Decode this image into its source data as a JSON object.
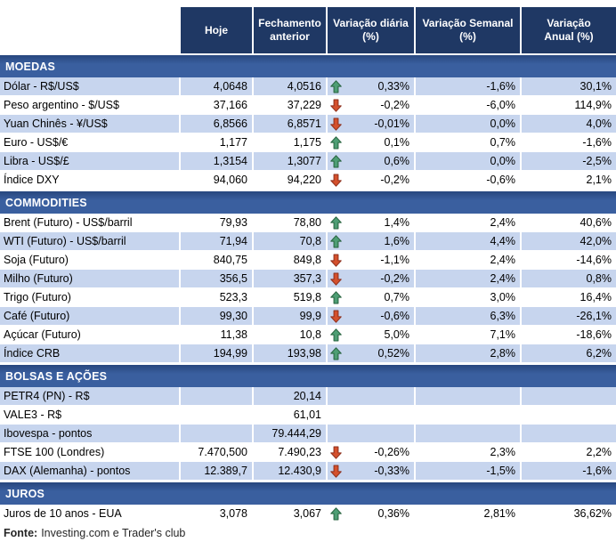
{
  "header": {
    "columns": [
      "Hoje",
      "Fechamento\nanterior",
      "Variação diária\n(%)",
      "Variação Semanal\n(%)",
      "Variação\nAnual (%)"
    ]
  },
  "colors": {
    "header_bg": "#1f3864",
    "section_bg": "#3a5f9f",
    "row_alt_bg": "#c7d5ee",
    "row_bg": "#ffffff",
    "up_fill": "#4e9e74",
    "up_border": "#27633f",
    "down_fill": "#d4502c",
    "down_border": "#8e2f1c"
  },
  "sections": [
    {
      "title": "MOEDAS",
      "rows": [
        {
          "label": "Dólar - R$/US$",
          "hoje": "4,0648",
          "fech": "4,0516",
          "arrow": "up",
          "dia": "0,33%",
          "sem": "-1,6%",
          "anu": "30,1%",
          "alt": true
        },
        {
          "label": "Peso argentino - $/US$",
          "hoje": "37,166",
          "fech": "37,229",
          "arrow": "down",
          "dia": "-0,2%",
          "sem": "-6,0%",
          "anu": "114,9%",
          "alt": false
        },
        {
          "label": "Yuan Chinês - ¥/US$",
          "hoje": "6,8566",
          "fech": "6,8571",
          "arrow": "down",
          "dia": "-0,01%",
          "sem": "0,0%",
          "anu": "4,0%",
          "alt": true
        },
        {
          "label": "Euro - US$/€",
          "hoje": "1,177",
          "fech": "1,175",
          "arrow": "up",
          "dia": "0,1%",
          "sem": "0,7%",
          "anu": "-1,6%",
          "alt": false
        },
        {
          "label": "Libra - US$/£",
          "hoje": "1,3154",
          "fech": "1,3077",
          "arrow": "up",
          "dia": "0,6%",
          "sem": "0,0%",
          "anu": "-2,5%",
          "alt": true
        },
        {
          "label": "Índice DXY",
          "hoje": "94,060",
          "fech": "94,220",
          "arrow": "down",
          "dia": "-0,2%",
          "sem": "-0,6%",
          "anu": "2,1%",
          "alt": false
        }
      ]
    },
    {
      "title": "COMMODITIES",
      "rows": [
        {
          "label": "Brent (Futuro) - US$/barril",
          "hoje": "79,93",
          "fech": "78,80",
          "arrow": "up",
          "dia": "1,4%",
          "sem": "2,4%",
          "anu": "40,6%",
          "alt": false
        },
        {
          "label": "WTI (Futuro) - US$/barril",
          "hoje": "71,94",
          "fech": "70,8",
          "arrow": "up",
          "dia": "1,6%",
          "sem": "4,4%",
          "anu": "42,0%",
          "alt": true
        },
        {
          "label": "Soja (Futuro)",
          "hoje": "840,75",
          "fech": "849,8",
          "arrow": "down",
          "dia": "-1,1%",
          "sem": "2,4%",
          "anu": "-14,6%",
          "alt": false
        },
        {
          "label": "Milho (Futuro)",
          "hoje": "356,5",
          "fech": "357,3",
          "arrow": "down",
          "dia": "-0,2%",
          "sem": "2,4%",
          "anu": "0,8%",
          "alt": true
        },
        {
          "label": "Trigo (Futuro)",
          "hoje": "523,3",
          "fech": "519,8",
          "arrow": "up",
          "dia": "0,7%",
          "sem": "3,0%",
          "anu": "16,4%",
          "alt": false
        },
        {
          "label": "Café (Futuro)",
          "hoje": "99,30",
          "fech": "99,9",
          "arrow": "down",
          "dia": "-0,6%",
          "sem": "6,3%",
          "anu": "-26,1%",
          "alt": true
        },
        {
          "label": "Açúcar (Futuro)",
          "hoje": "11,38",
          "fech": "10,8",
          "arrow": "up",
          "dia": "5,0%",
          "sem": "7,1%",
          "anu": "-18,6%",
          "alt": false
        },
        {
          "label": "Índice CRB",
          "hoje": "194,99",
          "fech": "193,98",
          "arrow": "up",
          "dia": "0,52%",
          "sem": "2,8%",
          "anu": "6,2%",
          "alt": true
        }
      ]
    },
    {
      "title": "BOLSAS E AÇÕES",
      "rows": [
        {
          "label": "PETR4 (PN) - R$",
          "hoje": "",
          "fech": "20,14",
          "arrow": "",
          "dia": "",
          "sem": "",
          "anu": "",
          "alt": true
        },
        {
          "label": "VALE3 - R$",
          "hoje": "",
          "fech": "61,01",
          "arrow": "",
          "dia": "",
          "sem": "",
          "anu": "",
          "alt": false
        },
        {
          "label": "Ibovespa - pontos",
          "hoje": "",
          "fech": "79.444,29",
          "arrow": "",
          "dia": "",
          "sem": "",
          "anu": "",
          "alt": true
        },
        {
          "label": "FTSE 100 (Londres)",
          "hoje": "7.470,500",
          "fech": "7.490,23",
          "arrow": "down",
          "dia": "-0,26%",
          "sem": "2,3%",
          "anu": "2,2%",
          "alt": false
        },
        {
          "label": "DAX (Alemanha) - pontos",
          "hoje": "12.389,7",
          "fech": "12.430,9",
          "arrow": "down",
          "dia": "-0,33%",
          "sem": "-1,5%",
          "anu": "-1,6%",
          "alt": true
        }
      ]
    },
    {
      "title": "JUROS",
      "rows": [
        {
          "label": "Juros de 10 anos - EUA",
          "hoje": "3,078",
          "fech": "3,067",
          "arrow": "up",
          "dia": "0,36%",
          "sem": "2,81%",
          "anu": "36,62%",
          "alt": false
        }
      ]
    }
  ],
  "footer": {
    "bold": "Fonte:",
    "text": "Investing.com e Trader's club"
  }
}
